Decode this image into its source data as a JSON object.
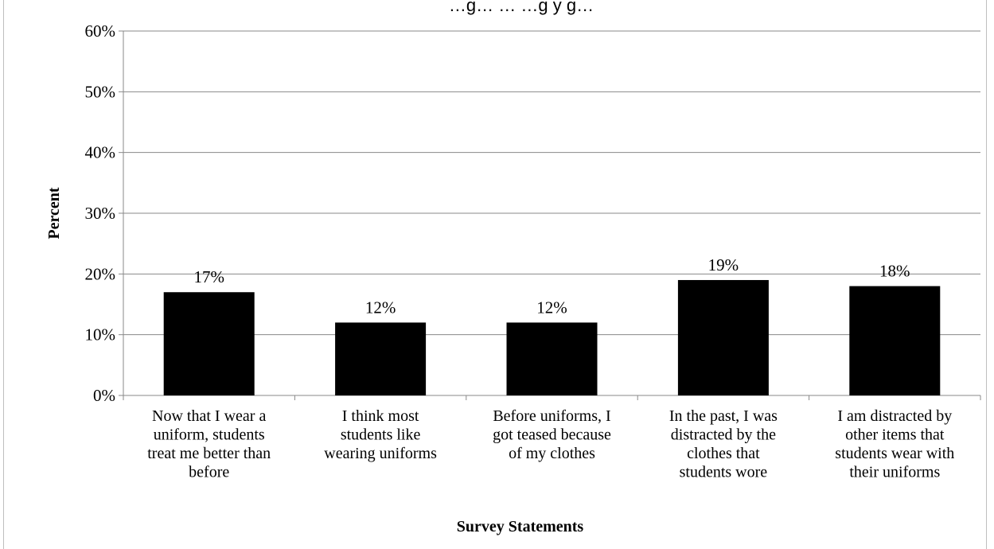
{
  "chart_data": {
    "type": "bar",
    "title": "…g… … …g y g…",
    "categories": [
      [
        "Now that I wear a",
        "uniform, students",
        "treat me better than",
        "before"
      ],
      [
        "I think most",
        "students like",
        "wearing uniforms"
      ],
      [
        "Before uniforms, I",
        "got teased because",
        "of my clothes"
      ],
      [
        "In the past, I was",
        "distracted by the",
        "clothes that",
        "students wore"
      ],
      [
        "I am distracted by",
        "other items that",
        "students wear with",
        "their uniforms"
      ]
    ],
    "values": [
      17,
      12,
      12,
      19,
      18
    ],
    "data_labels": [
      "17%",
      "12%",
      "12%",
      "19%",
      "18%"
    ],
    "ylim": [
      0,
      60
    ],
    "yticks": [
      0,
      10,
      20,
      30,
      40,
      50,
      60
    ],
    "ytick_labels": [
      "0%",
      "10%",
      "20%",
      "30%",
      "40%",
      "50%",
      "60%"
    ],
    "xlabel": "Survey Statements",
    "ylabel": "Percent",
    "grid": true,
    "bar_color": "#000000",
    "grid_color": "#888888"
  }
}
